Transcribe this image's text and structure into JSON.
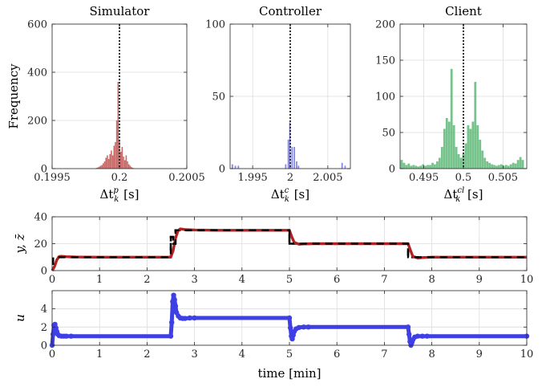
{
  "chart_data": [
    {
      "type": "histogram",
      "title": "Simulator",
      "xlabel_main": "Δt",
      "xlabel_sub": "k",
      "xlabel_sup": "p",
      "xlabel_unit": " [s]",
      "ylabel": "Frequency",
      "xlim": [
        0.1995,
        0.2005
      ],
      "ylim": [
        0,
        600
      ],
      "xticks": [
        "0.1995",
        "0.2",
        "0.2005"
      ],
      "xtick_values": [
        0.1995,
        0.2,
        0.2005
      ],
      "yticks": [
        "0",
        "200",
        "400",
        "600"
      ],
      "ytick_values": [
        0,
        200,
        400,
        600
      ],
      "reference_x": 0.2,
      "bar_color": "#c0504d",
      "bars": [
        {
          "x": 0.19983,
          "y": 3
        },
        {
          "x": 0.19984,
          "y": 5
        },
        {
          "x": 0.19985,
          "y": 8
        },
        {
          "x": 0.19986,
          "y": 12
        },
        {
          "x": 0.19987,
          "y": 15
        },
        {
          "x": 0.19988,
          "y": 22
        },
        {
          "x": 0.19989,
          "y": 30
        },
        {
          "x": 0.1999,
          "y": 45
        },
        {
          "x": 0.19991,
          "y": 55
        },
        {
          "x": 0.19992,
          "y": 40
        },
        {
          "x": 0.19993,
          "y": 60
        },
        {
          "x": 0.19994,
          "y": 75
        },
        {
          "x": 0.19995,
          "y": 55
        },
        {
          "x": 0.19996,
          "y": 95
        },
        {
          "x": 0.19997,
          "y": 110
        },
        {
          "x": 0.19998,
          "y": 200
        },
        {
          "x": 0.19999,
          "y": 360
        },
        {
          "x": 0.2,
          "y": 120
        },
        {
          "x": 0.20001,
          "y": 70
        },
        {
          "x": 0.20002,
          "y": 90
        },
        {
          "x": 0.20003,
          "y": 50
        },
        {
          "x": 0.20004,
          "y": 35
        },
        {
          "x": 0.20005,
          "y": 55
        },
        {
          "x": 0.20006,
          "y": 30
        },
        {
          "x": 0.20007,
          "y": 18
        },
        {
          "x": 0.20008,
          "y": 12
        },
        {
          "x": 0.20009,
          "y": 6
        },
        {
          "x": 0.2001,
          "y": 3
        }
      ]
    },
    {
      "type": "histogram",
      "title": "Controller",
      "xlabel_main": "Δt",
      "xlabel_sub": "k",
      "xlabel_sup": "c",
      "xlabel_unit": " [s]",
      "xlim": [
        1.992,
        2.008
      ],
      "ylim": [
        0,
        100
      ],
      "xticks": [
        "1.995",
        "2",
        "2.005"
      ],
      "xtick_values": [
        1.995,
        2,
        2.005
      ],
      "yticks": [
        "0",
        "50",
        "100"
      ],
      "ytick_values": [
        0,
        50,
        100
      ],
      "reference_x": 2.0,
      "bar_color": "#6f73e6",
      "bars": [
        {
          "x": 1.9923,
          "y": 3
        },
        {
          "x": 1.9927,
          "y": 2
        },
        {
          "x": 1.9931,
          "y": 2
        },
        {
          "x": 1.9994,
          "y": 3
        },
        {
          "x": 1.99975,
          "y": 20
        },
        {
          "x": 1.99995,
          "y": 32
        },
        {
          "x": 2.00025,
          "y": 15
        },
        {
          "x": 2.00055,
          "y": 15
        },
        {
          "x": 2.00085,
          "y": 5
        },
        {
          "x": 2.0011,
          "y": 2
        },
        {
          "x": 2.0069,
          "y": 4
        },
        {
          "x": 2.0073,
          "y": 2
        }
      ]
    },
    {
      "type": "histogram",
      "title": "Client",
      "xlabel_main": "Δt",
      "xlabel_sub": "k",
      "xlabel_sup": "cl",
      "xlabel_unit": " [s]",
      "xlim": [
        0.492,
        0.508
      ],
      "ylim": [
        0,
        200
      ],
      "xticks": [
        "0.495",
        "0.5",
        "0.505"
      ],
      "xtick_values": [
        0.495,
        0.5,
        0.505
      ],
      "yticks": [
        "0",
        "50",
        "100",
        "150",
        "200"
      ],
      "ytick_values": [
        0,
        50,
        100,
        150,
        200
      ],
      "reference_x": 0.5,
      "bar_color": "#5fb878",
      "bars": [
        {
          "x": 0.4922,
          "y": 12
        },
        {
          "x": 0.4925,
          "y": 8
        },
        {
          "x": 0.4928,
          "y": 5
        },
        {
          "x": 0.4931,
          "y": 7
        },
        {
          "x": 0.4934,
          "y": 4
        },
        {
          "x": 0.4937,
          "y": 5
        },
        {
          "x": 0.494,
          "y": 4
        },
        {
          "x": 0.4943,
          "y": 3
        },
        {
          "x": 0.4946,
          "y": 4
        },
        {
          "x": 0.4949,
          "y": 6
        },
        {
          "x": 0.4952,
          "y": 4
        },
        {
          "x": 0.4955,
          "y": 5
        },
        {
          "x": 0.4958,
          "y": 5
        },
        {
          "x": 0.4961,
          "y": 8
        },
        {
          "x": 0.4964,
          "y": 6
        },
        {
          "x": 0.4967,
          "y": 10
        },
        {
          "x": 0.497,
          "y": 15
        },
        {
          "x": 0.4973,
          "y": 30
        },
        {
          "x": 0.4976,
          "y": 55
        },
        {
          "x": 0.4979,
          "y": 70
        },
        {
          "x": 0.4982,
          "y": 65
        },
        {
          "x": 0.4985,
          "y": 138
        },
        {
          "x": 0.4988,
          "y": 60
        },
        {
          "x": 0.4991,
          "y": 30
        },
        {
          "x": 0.4994,
          "y": 20
        },
        {
          "x": 0.4997,
          "y": 15
        },
        {
          "x": 0.5,
          "y": 20
        },
        {
          "x": 0.5003,
          "y": 35
        },
        {
          "x": 0.5006,
          "y": 60
        },
        {
          "x": 0.5009,
          "y": 55
        },
        {
          "x": 0.5012,
          "y": 65
        },
        {
          "x": 0.5015,
          "y": 120
        },
        {
          "x": 0.5018,
          "y": 60
        },
        {
          "x": 0.5021,
          "y": 40
        },
        {
          "x": 0.5024,
          "y": 25
        },
        {
          "x": 0.5027,
          "y": 15
        },
        {
          "x": 0.503,
          "y": 10
        },
        {
          "x": 0.5033,
          "y": 8
        },
        {
          "x": 0.5036,
          "y": 6
        },
        {
          "x": 0.5039,
          "y": 5
        },
        {
          "x": 0.5042,
          "y": 4
        },
        {
          "x": 0.5045,
          "y": 5
        },
        {
          "x": 0.5048,
          "y": 6
        },
        {
          "x": 0.5051,
          "y": 4
        },
        {
          "x": 0.5054,
          "y": 5
        },
        {
          "x": 0.5057,
          "y": 4
        },
        {
          "x": 0.506,
          "y": 6
        },
        {
          "x": 0.5063,
          "y": 8
        },
        {
          "x": 0.5066,
          "y": 7
        },
        {
          "x": 0.5069,
          "y": 12
        },
        {
          "x": 0.5072,
          "y": 16
        },
        {
          "x": 0.5075,
          "y": 12
        }
      ]
    },
    {
      "type": "line",
      "ylabel": "y, z̄",
      "xlim": [
        0,
        10
      ],
      "ylim": [
        0,
        40
      ],
      "xticks": [
        "0",
        "1",
        "2",
        "3",
        "4",
        "5",
        "6",
        "7",
        "8",
        "9",
        "10"
      ],
      "xtick_values": [
        0,
        1,
        2,
        3,
        4,
        5,
        6,
        7,
        8,
        9,
        10
      ],
      "yticks": [
        "0",
        "20",
        "40"
      ],
      "ytick_values": [
        0,
        20,
        40
      ],
      "series": [
        {
          "role": "reference",
          "color": "#000000",
          "style": "dashed",
          "x": [
            0,
            0.02,
            0.02,
            2.5,
            2.5,
            2.55,
            2.55,
            2.6,
            2.6,
            5.0,
            5.0,
            7.5,
            7.5,
            10
          ],
          "y": [
            5,
            5,
            10,
            10,
            25,
            25,
            20,
            20,
            30,
            30,
            20,
            20,
            10,
            10
          ]
        },
        {
          "role": "output",
          "color": "#b22222",
          "style": "solid",
          "x": [
            0,
            0.05,
            0.1,
            0.15,
            0.2,
            0.3,
            0.5,
            1.0,
            2.5,
            2.55,
            2.6,
            2.65,
            2.7,
            2.8,
            3.0,
            3.5,
            5.0,
            5.05,
            5.1,
            5.2,
            5.3,
            5.5,
            6.0,
            7.5,
            7.55,
            7.6,
            7.7,
            7.8,
            8.0,
            10
          ],
          "y": [
            0,
            3,
            8,
            10.5,
            10.6,
            10.3,
            10.1,
            10,
            10,
            15,
            24,
            29.5,
            31,
            30.5,
            30.2,
            30,
            30,
            25,
            21,
            19.6,
            19.8,
            20,
            20,
            20,
            15,
            10.5,
            9.4,
            9.7,
            10,
            10
          ]
        }
      ]
    },
    {
      "type": "line",
      "ylabel": "u",
      "xlabel": "time [min]",
      "xlim": [
        0,
        10
      ],
      "ylim": [
        0,
        6
      ],
      "xticks": [
        "0",
        "1",
        "2",
        "3",
        "4",
        "5",
        "6",
        "7",
        "8",
        "9",
        "10"
      ],
      "xtick_values": [
        0,
        1,
        2,
        3,
        4,
        5,
        6,
        7,
        8,
        9,
        10
      ],
      "yticks": [
        "0",
        "2",
        "4"
      ],
      "ytick_values": [
        0,
        2,
        4
      ],
      "series": [
        {
          "role": "input",
          "color": "#3f3fe6",
          "style": "markers",
          "x": [
            0,
            0.02,
            0.04,
            0.06,
            0.08,
            0.1,
            0.12,
            0.15,
            0.2,
            0.25,
            0.3,
            0.4,
            2.5,
            2.52,
            2.54,
            2.56,
            2.58,
            2.6,
            2.62,
            2.66,
            2.7,
            2.75,
            2.8,
            2.9,
            3.0,
            5.0,
            5.02,
            5.04,
            5.06,
            5.08,
            5.1,
            5.14,
            5.2,
            5.3,
            5.4,
            7.5,
            7.52,
            7.54,
            7.56,
            7.58,
            7.6,
            7.64,
            7.7,
            7.8,
            7.9,
            10
          ],
          "y": [
            0,
            1.2,
            2.2,
            2.3,
            1.9,
            1.5,
            1.2,
            1.05,
            1.0,
            1.0,
            1.0,
            1.0,
            1.0,
            2.5,
            4.8,
            5.5,
            5.0,
            4.3,
            3.6,
            3.2,
            3.0,
            2.95,
            2.95,
            3.0,
            3.0,
            3.0,
            1.9,
            1.0,
            0.7,
            1.1,
            1.5,
            1.8,
            1.95,
            2.0,
            2.0,
            2.0,
            1.2,
            0.4,
            0.0,
            0.3,
            0.6,
            0.9,
            1.0,
            1.0,
            1.0,
            1.0
          ]
        }
      ]
    }
  ]
}
